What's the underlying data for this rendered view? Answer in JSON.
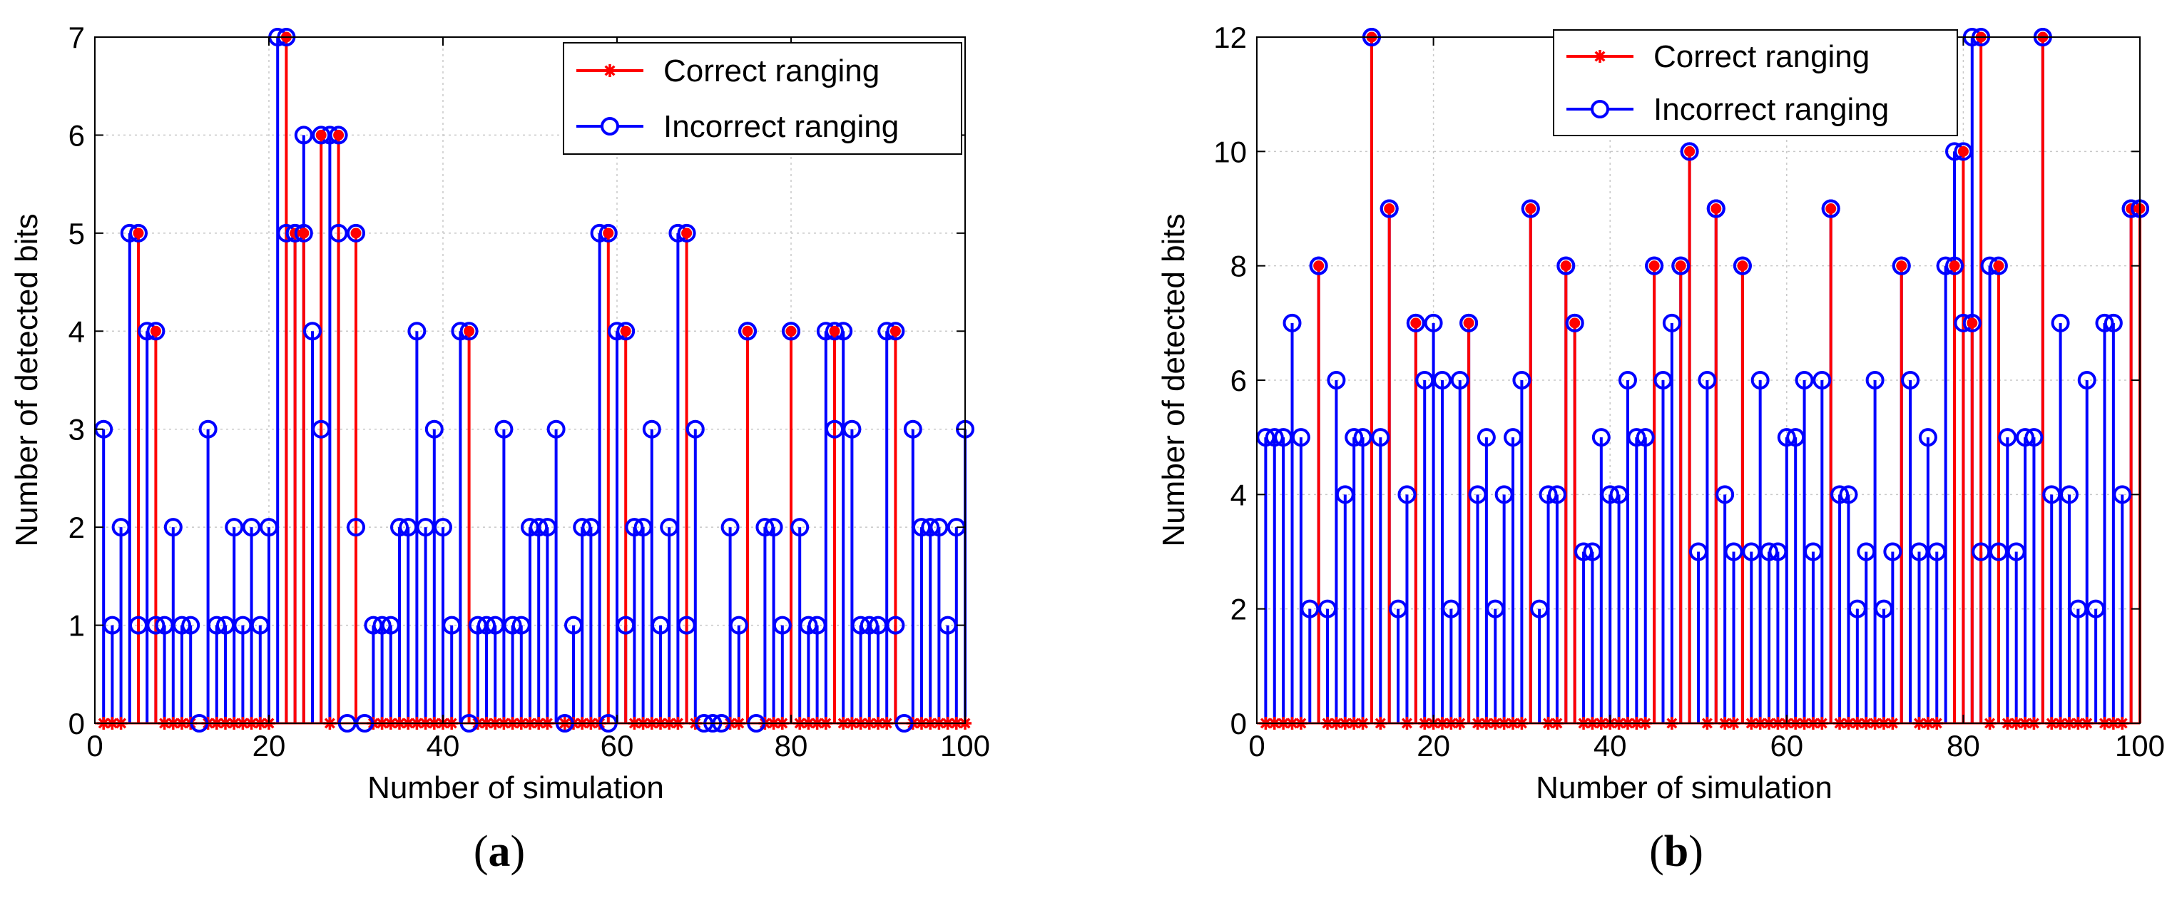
{
  "chart_data": [
    {
      "type": "stem",
      "panel_label": "a",
      "xlabel": "Number of simulation",
      "ylabel": "Number of detected bits",
      "xlim": [
        0,
        100
      ],
      "ylim": [
        0,
        7
      ],
      "xticks": [
        0,
        20,
        40,
        60,
        80,
        100
      ],
      "yticks": [
        0,
        1,
        2,
        3,
        4,
        5,
        6,
        7
      ],
      "grid": true,
      "legend_position": "top-right",
      "series": [
        {
          "name": "Correct ranging",
          "color": "#ff0000",
          "marker": "asterisk",
          "x": [
            1,
            2,
            3,
            5,
            7,
            8,
            9,
            10,
            11,
            13,
            14,
            15,
            16,
            17,
            18,
            19,
            20,
            22,
            23,
            24,
            26,
            27,
            28,
            30,
            32,
            33,
            34,
            35,
            36,
            37,
            38,
            39,
            40,
            41,
            43,
            44,
            45,
            46,
            47,
            48,
            49,
            50,
            51,
            52,
            54,
            55,
            56,
            57,
            58,
            59,
            61,
            62,
            63,
            64,
            65,
            66,
            67,
            68,
            69,
            73,
            74,
            75,
            77,
            78,
            79,
            80,
            81,
            82,
            83,
            84,
            85,
            86,
            87,
            88,
            89,
            90,
            91,
            92,
            94,
            95,
            96,
            97,
            98,
            99,
            100
          ],
          "y": [
            0,
            0,
            0,
            5,
            4,
            0,
            0,
            0,
            0,
            0,
            0,
            0,
            0,
            0,
            0,
            0,
            0,
            7,
            5,
            5,
            6,
            0,
            6,
            5,
            0,
            0,
            0,
            0,
            0,
            0,
            0,
            0,
            0,
            0,
            4,
            0,
            0,
            0,
            0,
            0,
            0,
            0,
            0,
            0,
            0,
            0,
            0,
            0,
            0,
            5,
            4,
            0,
            0,
            0,
            0,
            0,
            0,
            5,
            0,
            0,
            0,
            4,
            0,
            0,
            0,
            4,
            0,
            0,
            0,
            0,
            4,
            0,
            0,
            0,
            0,
            0,
            0,
            4,
            0,
            0,
            0,
            0,
            0,
            0,
            0
          ]
        },
        {
          "name": "Incorrect ranging",
          "color": "#0000ff",
          "marker": "circle",
          "x": [
            1,
            2,
            3,
            4,
            5,
            6,
            7,
            8,
            9,
            10,
            11,
            12,
            13,
            14,
            15,
            16,
            17,
            18,
            19,
            20,
            21,
            22,
            23,
            24,
            25,
            26,
            27,
            28,
            29,
            30,
            31,
            32,
            33,
            34,
            35,
            36,
            37,
            38,
            39,
            40,
            41,
            42,
            43,
            44,
            45,
            46,
            47,
            48,
            49,
            50,
            51,
            52,
            53,
            54,
            55,
            56,
            57,
            58,
            59,
            60,
            61,
            62,
            63,
            64,
            65,
            66,
            67,
            68,
            69,
            70,
            71,
            72,
            73,
            74,
            75,
            76,
            77,
            78,
            79,
            80,
            81,
            82,
            83,
            84,
            85,
            86,
            87,
            88,
            89,
            90,
            91,
            92,
            93,
            94,
            95,
            96,
            97,
            98,
            99,
            100
          ],
          "y": [
            3,
            1,
            2,
            5,
            1,
            4,
            1,
            1,
            2,
            1,
            1,
            0,
            3,
            1,
            1,
            2,
            1,
            2,
            1,
            2,
            7,
            5,
            5,
            6,
            4,
            3,
            6,
            5,
            0,
            2,
            0,
            1,
            1,
            1,
            2,
            2,
            4,
            2,
            3,
            2,
            1,
            4,
            0,
            1,
            1,
            1,
            3,
            1,
            1,
            2,
            2,
            2,
            3,
            0,
            1,
            2,
            2,
            5,
            0,
            4,
            1,
            2,
            2,
            3,
            1,
            2,
            5,
            1,
            3,
            0,
            0,
            0,
            2,
            1,
            4,
            0,
            2,
            2,
            1,
            4,
            2,
            1,
            1,
            4,
            3,
            4,
            3,
            1,
            1,
            1,
            4,
            1,
            0,
            3,
            2,
            2,
            2,
            1,
            2,
            3
          ]
        }
      ]
    },
    {
      "type": "stem",
      "panel_label": "b",
      "xlabel": "Number of simulation",
      "ylabel": "Number of detected bits",
      "xlim": [
        0,
        100
      ],
      "ylim": [
        0,
        12
      ],
      "xticks": [
        0,
        20,
        40,
        60,
        80,
        100
      ],
      "yticks": [
        0,
        2,
        4,
        6,
        8,
        10,
        12
      ],
      "grid": true,
      "legend_position": "top-center",
      "series": [
        {
          "name": "Correct ranging",
          "color": "#ff0000",
          "marker": "asterisk",
          "x": [
            1,
            2,
            3,
            4,
            5,
            7,
            8,
            9,
            10,
            11,
            12,
            13,
            14,
            15,
            17,
            18,
            19,
            20,
            21,
            22,
            23,
            24,
            25,
            26,
            27,
            28,
            29,
            30,
            31,
            33,
            34,
            35,
            36,
            37,
            38,
            39,
            40,
            41,
            42,
            43,
            44,
            45,
            47,
            48,
            49,
            51,
            52,
            53,
            54,
            55,
            56,
            57,
            58,
            59,
            60,
            61,
            62,
            63,
            64,
            65,
            66,
            67,
            68,
            69,
            70,
            71,
            72,
            73,
            75,
            76,
            77,
            79,
            80,
            81,
            82,
            83,
            84,
            85,
            86,
            87,
            88,
            89,
            90,
            91,
            92,
            93,
            94,
            96,
            97,
            98,
            99,
            100
          ],
          "y": [
            0,
            0,
            0,
            0,
            0,
            8,
            0,
            0,
            0,
            0,
            0,
            12,
            0,
            9,
            0,
            7,
            0,
            0,
            0,
            0,
            0,
            7,
            0,
            0,
            0,
            0,
            0,
            0,
            9,
            0,
            0,
            8,
            7,
            0,
            0,
            0,
            0,
            0,
            0,
            0,
            0,
            8,
            0,
            8,
            10,
            0,
            9,
            0,
            0,
            8,
            0,
            0,
            0,
            0,
            0,
            0,
            0,
            0,
            0,
            9,
            0,
            0,
            0,
            0,
            0,
            0,
            0,
            8,
            0,
            0,
            0,
            8,
            10,
            7,
            12,
            0,
            8,
            0,
            0,
            0,
            0,
            12,
            0,
            0,
            0,
            0,
            0,
            0,
            0,
            0,
            9,
            9
          ]
        },
        {
          "name": "Incorrect ranging",
          "color": "#0000ff",
          "marker": "circle",
          "x": [
            1,
            2,
            3,
            4,
            5,
            6,
            7,
            8,
            9,
            10,
            11,
            12,
            13,
            14,
            15,
            16,
            17,
            18,
            19,
            20,
            21,
            22,
            23,
            24,
            25,
            26,
            27,
            28,
            29,
            30,
            31,
            32,
            33,
            34,
            35,
            36,
            37,
            38,
            39,
            40,
            41,
            42,
            43,
            44,
            45,
            46,
            47,
            48,
            49,
            50,
            51,
            52,
            53,
            54,
            55,
            56,
            57,
            58,
            59,
            60,
            61,
            62,
            63,
            64,
            65,
            66,
            67,
            68,
            69,
            70,
            71,
            72,
            73,
            74,
            75,
            76,
            77,
            78,
            79,
            80,
            81,
            82,
            83,
            84,
            85,
            86,
            87,
            88,
            89,
            90,
            91,
            92,
            93,
            94,
            95,
            96,
            97,
            98,
            99,
            100
          ],
          "y": [
            5,
            5,
            5,
            7,
            5,
            2,
            8,
            2,
            6,
            4,
            5,
            5,
            12,
            5,
            9,
            2,
            4,
            7,
            6,
            7,
            6,
            2,
            6,
            7,
            4,
            5,
            2,
            4,
            5,
            6,
            9,
            2,
            4,
            4,
            8,
            7,
            3,
            3,
            5,
            4,
            4,
            6,
            5,
            5,
            8,
            6,
            7,
            8,
            10,
            3,
            6,
            9,
            4,
            3,
            8,
            3,
            6,
            3,
            3,
            5,
            5,
            6,
            3,
            6,
            9,
            4,
            4,
            2,
            3,
            6,
            2,
            3,
            8,
            6,
            3,
            5,
            3,
            8,
            10,
            7,
            12,
            3,
            8,
            3,
            5,
            3,
            5,
            5,
            12,
            4,
            7,
            4,
            2,
            6,
            2,
            7,
            7,
            4,
            9,
            9
          ]
        }
      ]
    }
  ]
}
